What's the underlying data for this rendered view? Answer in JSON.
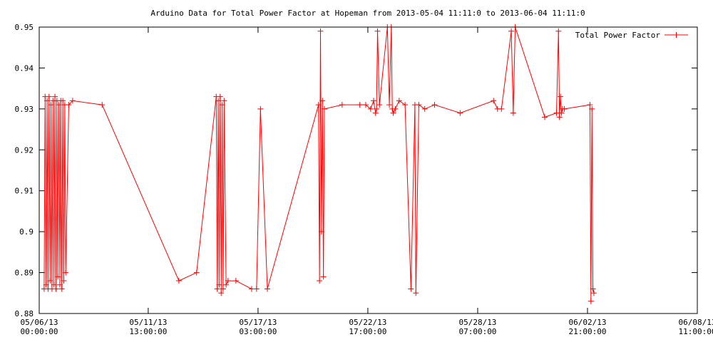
{
  "chart_data": {
    "type": "line",
    "title": "Arduino Data for Total Power Factor at Hopeman from 2013-05-04 11:11:0 to 2013-06-04 11:11:0",
    "xlabel": "",
    "ylabel": "",
    "x_unit": "days since 05/06/13 00:00",
    "xlim": [
      0,
      33.4583
    ],
    "ylim": [
      0.88,
      0.95
    ],
    "y_ticks": [
      {
        "value": 0.88,
        "label": "0.88"
      },
      {
        "value": 0.89,
        "label": "0.89"
      },
      {
        "value": 0.9,
        "label": "0.9"
      },
      {
        "value": 0.91,
        "label": "0.91"
      },
      {
        "value": 0.92,
        "label": "0.92"
      },
      {
        "value": 0.93,
        "label": "0.93"
      },
      {
        "value": 0.94,
        "label": "0.94"
      },
      {
        "value": 0.95,
        "label": "0.95"
      }
    ],
    "x_ticks": [
      {
        "value": 0,
        "date": "05/06/13",
        "time": "00:00:00"
      },
      {
        "value": 5.5417,
        "date": "05/11/13",
        "time": "13:00:00"
      },
      {
        "value": 11.125,
        "date": "05/17/13",
        "time": "03:00:00"
      },
      {
        "value": 16.7083,
        "date": "05/22/13",
        "time": "17:00:00"
      },
      {
        "value": 22.2917,
        "date": "05/28/13",
        "time": "07:00:00"
      },
      {
        "value": 27.875,
        "date": "06/02/13",
        "time": "21:00:00"
      },
      {
        "value": 33.4583,
        "date": "06/08/13",
        "time": "11:00:00"
      }
    ],
    "grid": false,
    "legend_position": "top-right",
    "series": [
      {
        "name": "Total Power Factor",
        "color": "#ff0000",
        "marker": "plus",
        "x": [
          0.25,
          0.3,
          0.35,
          0.4,
          0.45,
          0.5,
          0.55,
          0.6,
          0.65,
          0.7,
          0.75,
          0.8,
          0.85,
          0.9,
          0.95,
          1.0,
          1.05,
          1.1,
          1.15,
          1.2,
          1.25,
          1.3,
          1.35,
          1.5,
          1.7,
          3.2,
          7.1,
          8.0,
          9.0,
          9.05,
          9.1,
          9.15,
          9.2,
          9.25,
          9.3,
          9.35,
          9.4,
          9.5,
          9.6,
          10.0,
          10.8,
          11.05,
          11.25,
          11.6,
          14.2,
          14.25,
          14.3,
          14.35,
          14.4,
          14.45,
          14.5,
          15.4,
          16.3,
          16.6,
          16.85,
          17.0,
          17.1,
          17.15,
          17.2,
          17.3,
          17.7,
          17.8,
          17.9,
          17.95,
          18.0,
          18.1,
          18.3,
          18.6,
          18.9,
          19.1,
          19.15,
          19.3,
          19.6,
          20.1,
          21.4,
          23.1,
          23.3,
          23.5,
          24.0,
          24.1,
          24.2,
          25.7,
          26.3,
          26.4,
          26.45,
          26.5,
          26.55,
          26.6,
          26.7,
          28.0,
          28.05,
          28.1,
          28.15,
          28.2
        ],
        "y": [
          0.886,
          0.933,
          0.887,
          0.932,
          0.886,
          0.933,
          0.888,
          0.931,
          0.886,
          0.932,
          0.887,
          0.933,
          0.886,
          0.932,
          0.889,
          0.931,
          0.887,
          0.932,
          0.886,
          0.932,
          0.888,
          0.931,
          0.89,
          0.931,
          0.932,
          0.931,
          0.888,
          0.89,
          0.933,
          0.886,
          0.932,
          0.887,
          0.933,
          0.885,
          0.931,
          0.886,
          0.932,
          0.887,
          0.888,
          0.888,
          0.886,
          0.886,
          0.93,
          0.886,
          0.931,
          0.888,
          0.949,
          0.9,
          0.932,
          0.889,
          0.93,
          0.931,
          0.931,
          0.931,
          0.93,
          0.932,
          0.929,
          0.93,
          0.949,
          0.931,
          0.95,
          0.931,
          0.95,
          0.93,
          0.929,
          0.93,
          0.932,
          0.931,
          0.886,
          0.931,
          0.885,
          0.931,
          0.93,
          0.931,
          0.929,
          0.932,
          0.93,
          0.93,
          0.949,
          0.929,
          0.95,
          0.928,
          0.929,
          0.949,
          0.928,
          0.933,
          0.929,
          0.93,
          0.93,
          0.931,
          0.883,
          0.93,
          0.886,
          0.885
        ]
      }
    ]
  }
}
